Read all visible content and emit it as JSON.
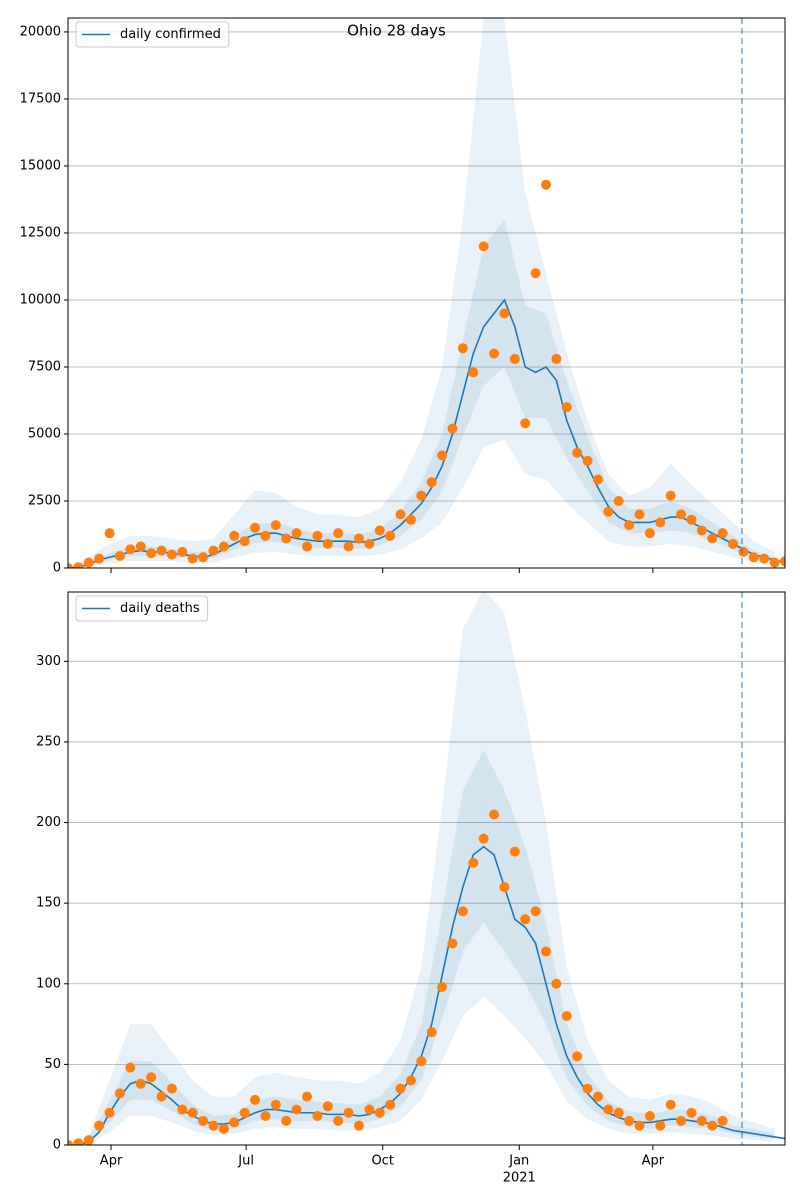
{
  "chart_data": [
    {
      "type": "line",
      "title": "Ohio 28 days",
      "legend": "upper left",
      "grid": true,
      "xlim": [
        62,
        545
      ],
      "xticks": [
        91,
        182,
        274,
        366,
        456
      ],
      "ylim": [
        0,
        20520
      ],
      "yticks": [
        0,
        2500,
        5000,
        7500,
        10000,
        12500,
        15000,
        17500,
        20000
      ],
      "vline": 516,
      "vline_color": "#1f77b4",
      "x": [
        62,
        69,
        76,
        83,
        90,
        97,
        104,
        111,
        118,
        125,
        132,
        139,
        146,
        153,
        160,
        167,
        174,
        181,
        188,
        195,
        202,
        209,
        216,
        223,
        230,
        237,
        244,
        251,
        258,
        265,
        272,
        279,
        286,
        293,
        300,
        307,
        314,
        321,
        328,
        335,
        342,
        349,
        356,
        363,
        370,
        377,
        384,
        391,
        398,
        405,
        412,
        419,
        426,
        433,
        440,
        447,
        454,
        461,
        468,
        475,
        482,
        489,
        496,
        503,
        510,
        517,
        524,
        531,
        538,
        545
      ],
      "series": [
        {
          "name": "daily confirmed",
          "color": "#1f77b4",
          "values": [
            0,
            20,
            150,
            300,
            400,
            500,
            600,
            650,
            600,
            600,
            550,
            500,
            450,
            400,
            500,
            700,
            900,
            1100,
            1250,
            1300,
            1300,
            1200,
            1100,
            1050,
            1000,
            1000,
            1000,
            1000,
            950,
            1000,
            1100,
            1300,
            1600,
            2000,
            2400,
            3000,
            3800,
            5000,
            6500,
            8000,
            9000,
            9500,
            10000,
            9000,
            7500,
            7300,
            7500,
            7000,
            5500,
            4500,
            3800,
            3000,
            2300,
            1900,
            1700,
            1700,
            1700,
            1800,
            1900,
            1900,
            1700,
            1500,
            1300,
            1100,
            900,
            700,
            500,
            400,
            300,
            200
          ]
        }
      ],
      "markers": {
        "color": "#ff7f0e",
        "values": [
          0,
          30,
          200,
          350,
          1300,
          450,
          700,
          800,
          550,
          650,
          500,
          600,
          350,
          400,
          650,
          800,
          1200,
          1000,
          1500,
          1200,
          1600,
          1100,
          1300,
          800,
          1200,
          900,
          1300,
          800,
          1100,
          900,
          1400,
          1200,
          2000,
          1800,
          2700,
          3200,
          4200,
          5200,
          8200,
          7300,
          12000,
          8000,
          9500,
          7800,
          5400,
          11000,
          14300,
          7800,
          6000,
          4300,
          4000,
          3300,
          2100,
          2500,
          1600,
          2000,
          1300,
          1700,
          2700,
          2000,
          1800,
          1400,
          1100,
          1300,
          900,
          600,
          400,
          350,
          200,
          250
        ]
      },
      "bands": {
        "color": "#1f77b4",
        "x": [
          62,
          76,
          90,
          104,
          118,
          132,
          146,
          160,
          174,
          188,
          202,
          216,
          230,
          244,
          258,
          272,
          286,
          300,
          314,
          328,
          342,
          356,
          370,
          384,
          398,
          412,
          426,
          440,
          454,
          468,
          482,
          496,
          510,
          524,
          538
        ],
        "levels": [
          {
            "lower": [
              0,
              50,
              150,
              250,
              250,
              250,
              200,
              200,
              400,
              550,
              600,
              500,
              450,
              450,
              450,
              500,
              700,
              1100,
              1700,
              3000,
              4500,
              4800,
              3500,
              3300,
              2400,
              1700,
              1000,
              800,
              800,
              900,
              800,
              600,
              400,
              200,
              100
            ],
            "upper": [
              0,
              400,
              900,
              1200,
              1200,
              1100,
              1000,
              1100,
              2000,
              2900,
              2800,
              2300,
              2000,
              2000,
              1900,
              2200,
              3200,
              4800,
              7500,
              13000,
              20500,
              20500,
              14000,
              11000,
              8000,
              5500,
              3500,
              2700,
              3000,
              3900,
              3100,
              2400,
              1700,
              1000,
              600
            ]
          },
          {
            "lower": [
              0,
              100,
              300,
              450,
              450,
              400,
              340,
              380,
              680,
              940,
              980,
              830,
              750,
              750,
              710,
              830,
              1200,
              1800,
              2850,
              4900,
              6800,
              7500,
              5600,
              5600,
              4100,
              2850,
              1700,
              1300,
              1300,
              1400,
              1300,
              1000,
              680,
              380,
              230
            ],
            "upper": [
              0,
              200,
              550,
              800,
              800,
              700,
              600,
              650,
              1200,
              1650,
              1700,
              1450,
              1300,
              1300,
              1250,
              1450,
              2100,
              3200,
              5000,
              8500,
              12000,
              13000,
              9800,
              9500,
              7000,
              4900,
              3000,
              2200,
              2200,
              2500,
              2200,
              1700,
              1200,
              650,
              400
            ]
          }
        ]
      }
    },
    {
      "type": "line",
      "legend": "upper left",
      "grid": true,
      "xlim": [
        62,
        545
      ],
      "xticks": [
        {
          "value": 91,
          "label": "Apr"
        },
        {
          "value": 182,
          "label": "Jul"
        },
        {
          "value": 274,
          "label": "Oct"
        },
        {
          "value": 366,
          "label": "Jan"
        },
        {
          "value": 456,
          "label": "Apr"
        }
      ],
      "year_label": {
        "value": 366,
        "label": "2021"
      },
      "ylim": [
        0,
        343
      ],
      "yticks": [
        0,
        50,
        100,
        150,
        200,
        250,
        300
      ],
      "vline": 516,
      "vline_color": "#1f77b4",
      "x": [
        62,
        69,
        76,
        83,
        90,
        97,
        104,
        111,
        118,
        125,
        132,
        139,
        146,
        153,
        160,
        167,
        174,
        181,
        188,
        195,
        202,
        209,
        216,
        223,
        230,
        237,
        244,
        251,
        258,
        265,
        272,
        279,
        286,
        293,
        300,
        307,
        314,
        321,
        328,
        335,
        342,
        349,
        356,
        363,
        370,
        377,
        384,
        391,
        398,
        405,
        412,
        419,
        426,
        433,
        440,
        447,
        454,
        461,
        468,
        475,
        482,
        489,
        496,
        503,
        510,
        517,
        524,
        531,
        538,
        545
      ],
      "series": [
        {
          "name": "daily deaths",
          "color": "#1f77b4",
          "values": [
            0,
            0,
            2,
            8,
            20,
            30,
            38,
            40,
            38,
            33,
            28,
            22,
            18,
            15,
            13,
            13,
            14,
            17,
            20,
            22,
            22,
            21,
            20,
            20,
            20,
            19,
            19,
            19,
            18,
            19,
            22,
            26,
            32,
            42,
            55,
            75,
            105,
            135,
            160,
            180,
            185,
            180,
            160,
            140,
            135,
            125,
            100,
            75,
            55,
            42,
            32,
            25,
            20,
            17,
            15,
            14,
            14,
            15,
            16,
            16,
            15,
            14,
            13,
            11,
            9,
            8,
            7,
            6,
            5,
            4
          ]
        }
      ],
      "markers": {
        "color": "#ff7f0e",
        "values": [
          0,
          1,
          3,
          12,
          20,
          32,
          48,
          38,
          42,
          30,
          35,
          22,
          20,
          15,
          12,
          10,
          14,
          20,
          28,
          18,
          25,
          15,
          22,
          30,
          18,
          24,
          15,
          20,
          12,
          22,
          20,
          25,
          35,
          40,
          52,
          70,
          98,
          125,
          145,
          175,
          190,
          205,
          160,
          182,
          140,
          145,
          120,
          100,
          80,
          55,
          35,
          30,
          22,
          20,
          15,
          12,
          18,
          12,
          25,
          15,
          20,
          15,
          12,
          15,
          null,
          null,
          null,
          null,
          null,
          null
        ]
      },
      "bands": {
        "color": "#1f77b4",
        "x": [
          62,
          76,
          90,
          104,
          118,
          132,
          146,
          160,
          174,
          188,
          202,
          216,
          230,
          244,
          258,
          272,
          286,
          300,
          314,
          328,
          342,
          356,
          370,
          384,
          398,
          412,
          426,
          440,
          454,
          468,
          482,
          496,
          510,
          524,
          538
        ],
        "levels": [
          {
            "lower": [
              0,
              0,
              8,
              18,
              18,
              14,
              9,
              6,
              7,
              10,
              11,
              10,
              10,
              9,
              9,
              11,
              15,
              28,
              52,
              80,
              92,
              80,
              66,
              50,
              27,
              16,
              10,
              7,
              7,
              8,
              7,
              6,
              4,
              3,
              2
            ],
            "upper": [
              1,
              6,
              40,
              75,
              75,
              58,
              40,
              30,
              30,
              42,
              45,
              42,
              40,
              40,
              38,
              45,
              65,
              110,
              210,
              320,
              345,
              330,
              270,
              200,
              110,
              65,
              40,
              30,
              28,
              32,
              30,
              26,
              18,
              14,
              10
            ]
          },
          {
            "lower": [
              0,
              1,
              14,
              28,
              28,
              21,
              13,
              9,
              10,
              15,
              16,
              15,
              15,
              14,
              13,
              16,
              24,
              40,
              78,
              120,
              138,
              120,
              100,
              75,
              41,
              24,
              15,
              11,
              10,
              12,
              11,
              10,
              7,
              5,
              4
            ],
            "upper": [
              0,
              4,
              28,
              52,
              52,
              39,
              25,
              18,
              19,
              28,
              30,
              28,
              27,
              26,
              25,
              30,
              44,
              75,
              145,
              220,
              245,
              220,
              185,
              138,
              75,
              44,
              27,
              21,
              19,
              22,
              21,
              18,
              12,
              10,
              7
            ]
          }
        ]
      }
    }
  ]
}
